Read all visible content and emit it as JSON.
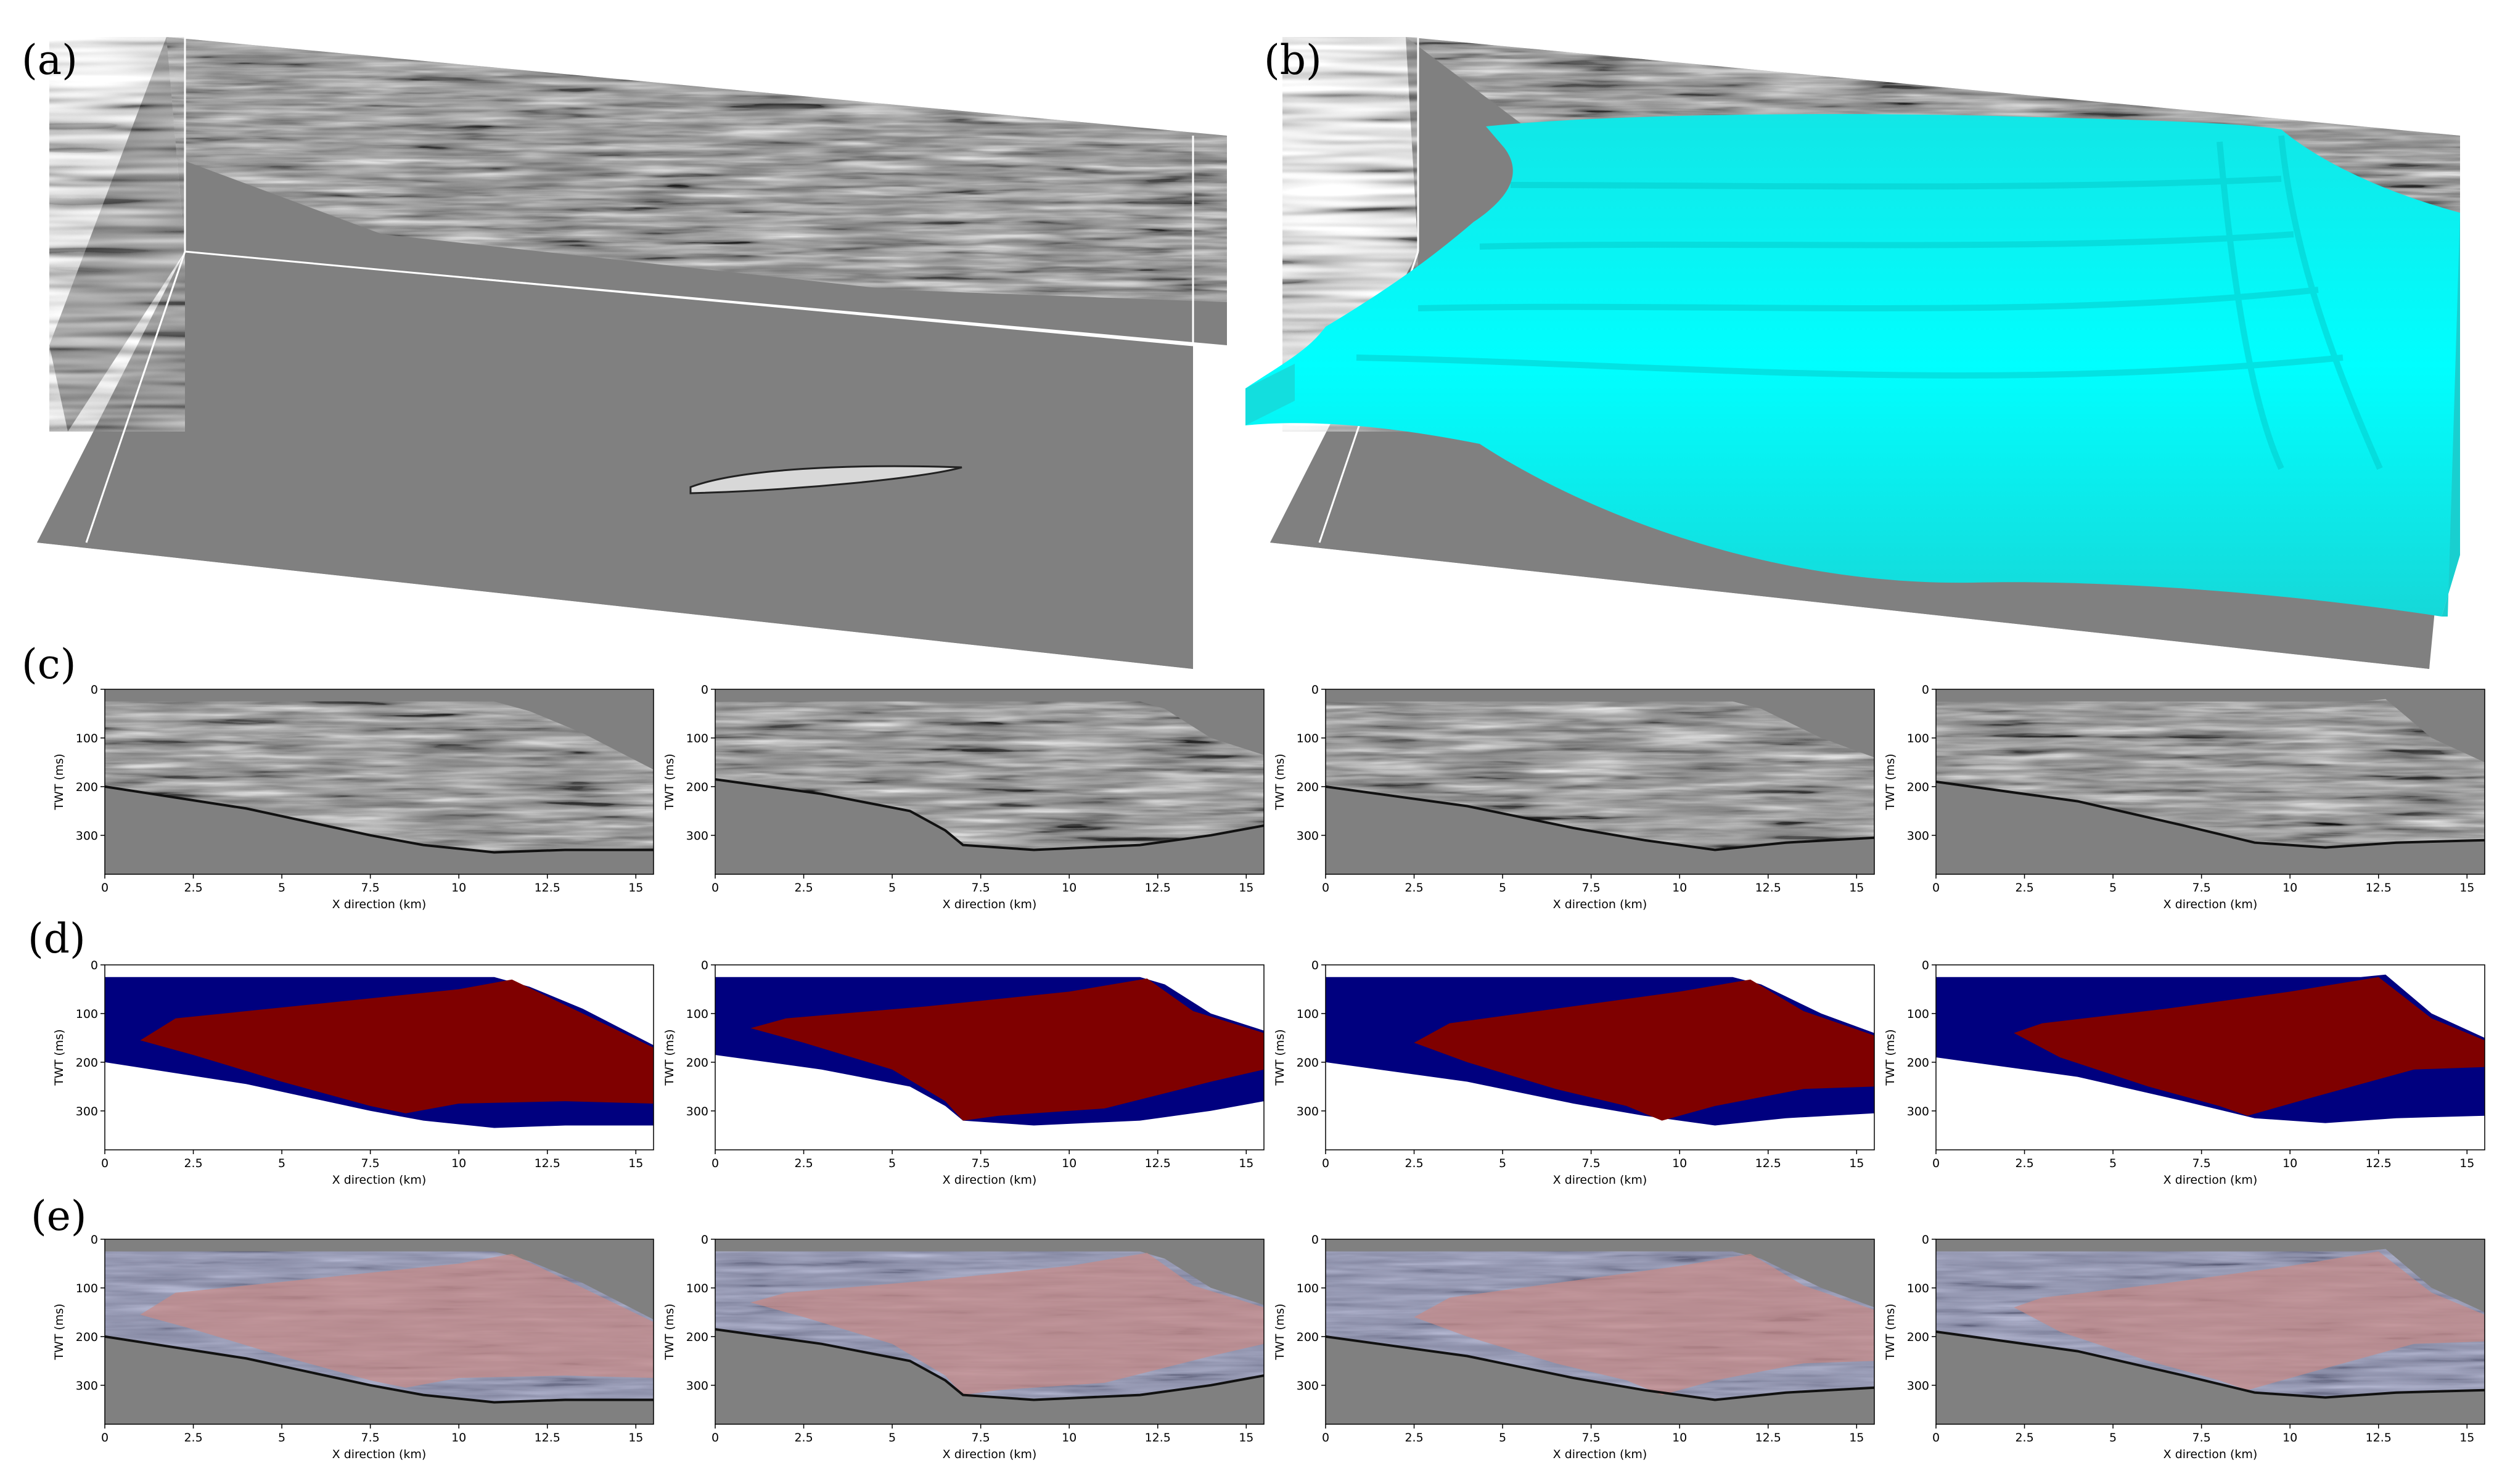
{
  "figure": {
    "panel_labels": [
      "(a)",
      "(b)",
      "(c)",
      "(d)",
      "(e)"
    ]
  },
  "colors": {
    "background_gray": "#808080",
    "surface_cyan": "#00ffff",
    "mask_blue": "#00007f",
    "mask_red": "#7f0000",
    "overlay_blue": "#8f95c4",
    "overlay_red": "#c98a86",
    "white": "#ffffff"
  },
  "axes": {
    "xlabel": "X direction (km)",
    "ylabel": "TWT (ms)",
    "x_ticks": [
      "0",
      "2.5",
      "5",
      "7.5",
      "10",
      "12.5",
      "15"
    ],
    "y_ticks": [
      "0",
      "100",
      "200",
      "300"
    ]
  },
  "chart_data": [
    {
      "type": "heatmap",
      "row": "c",
      "column": 1,
      "xlim": [
        0,
        15.5
      ],
      "ylim": [
        380,
        0
      ],
      "content": "seismic section"
    },
    {
      "type": "heatmap",
      "row": "c",
      "column": 2,
      "xlim": [
        0,
        15.5
      ],
      "ylim": [
        380,
        0
      ],
      "content": "seismic section"
    },
    {
      "type": "heatmap",
      "row": "c",
      "column": 3,
      "xlim": [
        0,
        15.5
      ],
      "ylim": [
        380,
        0
      ],
      "content": "seismic section"
    },
    {
      "type": "heatmap",
      "row": "c",
      "column": 4,
      "xlim": [
        0,
        15.5
      ],
      "ylim": [
        380,
        0
      ],
      "content": "seismic section"
    },
    {
      "type": "heatmap",
      "row": "d",
      "column": 1,
      "xlim": [
        0,
        15.5
      ],
      "ylim": [
        380,
        0
      ],
      "content": "label mask",
      "top": [
        [
          0,
          25
        ],
        [
          11,
          25
        ],
        [
          12,
          45
        ],
        [
          13.5,
          90
        ],
        [
          15.5,
          165
        ]
      ],
      "bottom": [
        [
          0,
          200
        ],
        [
          4,
          245
        ],
        [
          7.5,
          300
        ],
        [
          9,
          320
        ],
        [
          11,
          335
        ],
        [
          13,
          330
        ],
        [
          15.5,
          330
        ]
      ],
      "red_top": [
        [
          1,
          155
        ],
        [
          2,
          110
        ],
        [
          6,
          80
        ],
        [
          10,
          50
        ],
        [
          11.5,
          30
        ],
        [
          13.5,
          100
        ],
        [
          15.5,
          170
        ]
      ],
      "red_bottom": [
        [
          1,
          155
        ],
        [
          2.5,
          185
        ],
        [
          5,
          240
        ],
        [
          7.5,
          290
        ],
        [
          8.5,
          305
        ],
        [
          10,
          285
        ],
        [
          13,
          280
        ],
        [
          15.5,
          285
        ]
      ]
    },
    {
      "type": "heatmap",
      "row": "d",
      "column": 2,
      "xlim": [
        0,
        15.5
      ],
      "ylim": [
        380,
        0
      ],
      "content": "label mask",
      "top": [
        [
          0,
          25
        ],
        [
          12,
          25
        ],
        [
          12.7,
          40
        ],
        [
          14,
          100
        ],
        [
          15.5,
          135
        ]
      ],
      "bottom": [
        [
          0,
          185
        ],
        [
          3,
          215
        ],
        [
          5.5,
          250
        ],
        [
          6.5,
          290
        ],
        [
          7,
          320
        ],
        [
          9,
          330
        ],
        [
          12,
          320
        ],
        [
          14,
          300
        ],
        [
          15.5,
          280
        ]
      ],
      "red_top": [
        [
          1,
          130
        ],
        [
          2,
          110
        ],
        [
          6,
          85
        ],
        [
          10,
          55
        ],
        [
          12.2,
          28
        ],
        [
          13.5,
          95
        ],
        [
          15.5,
          140
        ]
      ],
      "red_bottom": [
        [
          1,
          130
        ],
        [
          2.5,
          160
        ],
        [
          5,
          215
        ],
        [
          6.5,
          280
        ],
        [
          7,
          320
        ],
        [
          8,
          310
        ],
        [
          11,
          295
        ],
        [
          14,
          240
        ],
        [
          15.5,
          215
        ]
      ]
    },
    {
      "type": "heatmap",
      "row": "d",
      "column": 3,
      "xlim": [
        0,
        15.5
      ],
      "ylim": [
        380,
        0
      ],
      "content": "label mask",
      "top": [
        [
          0,
          25
        ],
        [
          11.5,
          25
        ],
        [
          12.3,
          40
        ],
        [
          14,
          100
        ],
        [
          15.5,
          140
        ]
      ],
      "bottom": [
        [
          0,
          200
        ],
        [
          4,
          240
        ],
        [
          7,
          285
        ],
        [
          9,
          310
        ],
        [
          11,
          330
        ],
        [
          13,
          315
        ],
        [
          15.5,
          305
        ]
      ],
      "red_top": [
        [
          2.5,
          160
        ],
        [
          3.5,
          120
        ],
        [
          7,
          85
        ],
        [
          10,
          55
        ],
        [
          12,
          30
        ],
        [
          13.5,
          95
        ],
        [
          15.5,
          145
        ]
      ],
      "red_bottom": [
        [
          2.5,
          160
        ],
        [
          4,
          200
        ],
        [
          6.5,
          255
        ],
        [
          8.5,
          290
        ],
        [
          9.5,
          320
        ],
        [
          11,
          290
        ],
        [
          13.5,
          255
        ],
        [
          15.5,
          250
        ]
      ]
    },
    {
      "type": "heatmap",
      "row": "d",
      "column": 4,
      "xlim": [
        0,
        15.5
      ],
      "ylim": [
        380,
        0
      ],
      "content": "label mask",
      "top": [
        [
          0,
          25
        ],
        [
          12,
          25
        ],
        [
          12.7,
          20
        ],
        [
          14,
          100
        ],
        [
          15.5,
          150
        ]
      ],
      "bottom": [
        [
          0,
          190
        ],
        [
          4,
          230
        ],
        [
          7,
          280
        ],
        [
          9,
          315
        ],
        [
          11,
          325
        ],
        [
          13,
          315
        ],
        [
          15.5,
          310
        ]
      ],
      "red_top": [
        [
          2.2,
          140
        ],
        [
          3,
          120
        ],
        [
          6.5,
          90
        ],
        [
          10,
          55
        ],
        [
          12.5,
          25
        ],
        [
          14,
          110
        ],
        [
          15.5,
          155
        ]
      ],
      "red_bottom": [
        [
          2.2,
          140
        ],
        [
          3.5,
          190
        ],
        [
          6,
          250
        ],
        [
          8,
          290
        ],
        [
          8.8,
          310
        ],
        [
          10.5,
          275
        ],
        [
          13.5,
          215
        ],
        [
          15.5,
          210
        ]
      ]
    },
    {
      "type": "heatmap",
      "row": "e",
      "column": 1,
      "xlim": [
        0,
        15.5
      ],
      "ylim": [
        380,
        0
      ],
      "content": "seismic with mask overlay"
    },
    {
      "type": "heatmap",
      "row": "e",
      "column": 2,
      "xlim": [
        0,
        15.5
      ],
      "ylim": [
        380,
        0
      ],
      "content": "seismic with mask overlay"
    },
    {
      "type": "heatmap",
      "row": "e",
      "column": 3,
      "xlim": [
        0,
        15.5
      ],
      "ylim": [
        380,
        0
      ],
      "content": "seismic with mask overlay"
    },
    {
      "type": "heatmap",
      "row": "e",
      "column": 4,
      "xlim": [
        0,
        15.5
      ],
      "ylim": [
        380,
        0
      ],
      "content": "seismic with mask overlay"
    }
  ]
}
